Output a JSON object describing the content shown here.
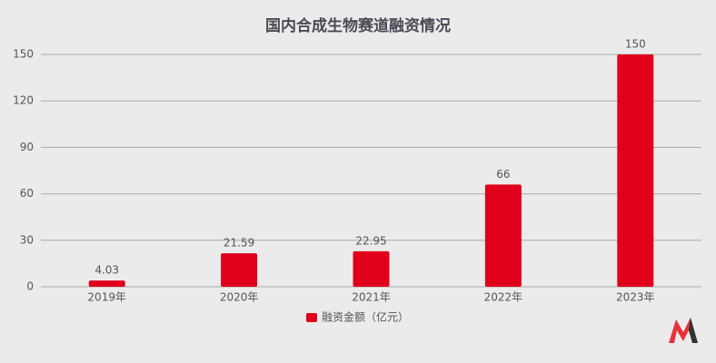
{
  "chart_data": {
    "type": "bar",
    "title": "国内合成生物赛道融资情况",
    "categories": [
      "2019年",
      "2020年",
      "2021年",
      "2022年",
      "2023年"
    ],
    "series": [
      {
        "name": "融资金额（亿元）",
        "color": "#e0001b",
        "values": [
          4.03,
          21.59,
          22.95,
          66,
          150
        ]
      }
    ],
    "ylim": [
      0,
      150
    ],
    "yticks": [
      0,
      30,
      60,
      90,
      120,
      150
    ],
    "grid": true,
    "legend": "bottom"
  }
}
